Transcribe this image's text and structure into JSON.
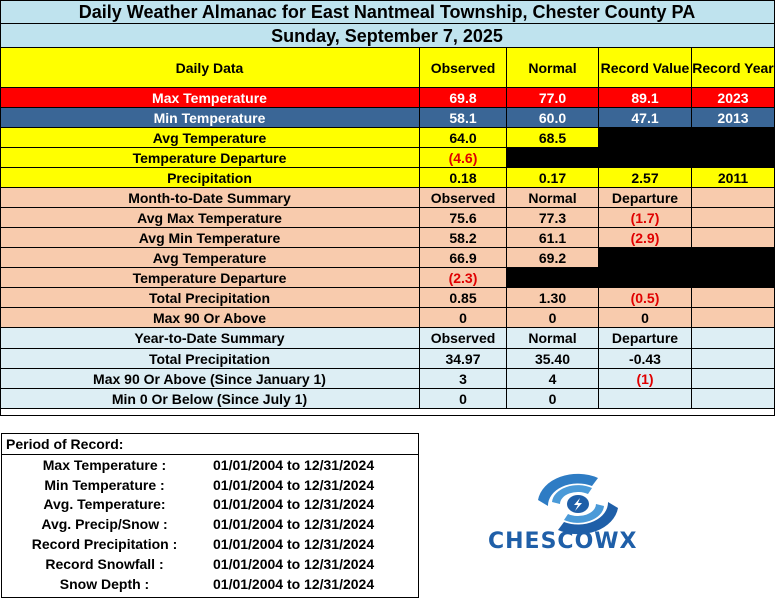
{
  "title": "Daily Weather Almanac for East Nantmeal Township, Chester County PA",
  "date": "Sunday, September 7, 2025",
  "daily": {
    "headers": [
      "Daily Data",
      "Observed",
      "Normal",
      "Record Value",
      "Record Year"
    ],
    "max_temp": {
      "label": "Max Temperature",
      "observed": "69.8",
      "normal": "77.0",
      "record": "89.1",
      "year": "2023"
    },
    "min_temp": {
      "label": "Min Temperature",
      "observed": "58.1",
      "normal": "60.0",
      "record": "47.1",
      "year": "2013"
    },
    "avg_temp": {
      "label": "Avg Temperature",
      "observed": "64.0",
      "normal": "68.5"
    },
    "temp_dep": {
      "label": "Temperature Departure",
      "observed": "(4.6)"
    },
    "precip": {
      "label": "Precipitation",
      "observed": "0.18",
      "normal": "0.17",
      "record": "2.57",
      "year": "2011"
    }
  },
  "mtd": {
    "headers": [
      "Month-to-Date Summary",
      "Observed",
      "Normal",
      "Departure"
    ],
    "rows": [
      {
        "label": "Avg Max Temperature",
        "observed": "75.6",
        "normal": "77.3",
        "departure": "(1.7)"
      },
      {
        "label": "Avg Min Temperature",
        "observed": "58.2",
        "normal": "61.1",
        "departure": "(2.9)"
      },
      {
        "label": "Avg Temperature",
        "observed": "66.9",
        "normal": "69.2"
      },
      {
        "label": "Temperature Departure",
        "observed": "(2.3)"
      },
      {
        "label": "Total Precipitation",
        "observed": "0.85",
        "normal": "1.30",
        "departure": "(0.5)"
      },
      {
        "label": "Max 90 Or Above",
        "observed": "0",
        "normal": "0",
        "departure": "0"
      }
    ]
  },
  "ytd": {
    "headers": [
      "Year-to-Date Summary",
      "Observed",
      "Normal",
      "Departure"
    ],
    "rows": [
      {
        "label": "Total Precipitation",
        "observed": "34.97",
        "normal": "35.40",
        "departure": "-0.43"
      },
      {
        "label": "Max 90 Or Above (Since January 1)",
        "observed": "3",
        "normal": "4",
        "departure": "(1)"
      },
      {
        "label": "Min 0 Or Below (Since July 1)",
        "observed": "0",
        "normal": "0"
      }
    ]
  },
  "period": {
    "heading": "Period of Record:",
    "rows": [
      {
        "label": "Max Temperature :",
        "range": "01/01/2004 to 12/31/2024"
      },
      {
        "label": "Min Temperature :",
        "range": "01/01/2004 to 12/31/2024"
      },
      {
        "label": "Avg. Temperature:",
        "range": "01/01/2004 to 12/31/2024"
      },
      {
        "label": "Avg. Precip/Snow :",
        "range": "01/01/2004 to 12/31/2024"
      },
      {
        "label": "Record Precipitation :",
        "range": "01/01/2004 to 12/31/2024"
      },
      {
        "label": "Record Snowfall :",
        "range": "01/01/2004 to 12/31/2024"
      },
      {
        "label": "Snow Depth :",
        "range": "01/01/2004 to 12/31/2024"
      }
    ]
  },
  "logo": {
    "text": "CHESCOWX",
    "color": "#1f5fa8"
  },
  "colors": {
    "max_row": "#ff0000",
    "min_row": "#3a6696",
    "yellow": "#ffff00",
    "peach": "#f8cbad",
    "light_blue": "#ddeef4",
    "negative": "#e00000"
  }
}
